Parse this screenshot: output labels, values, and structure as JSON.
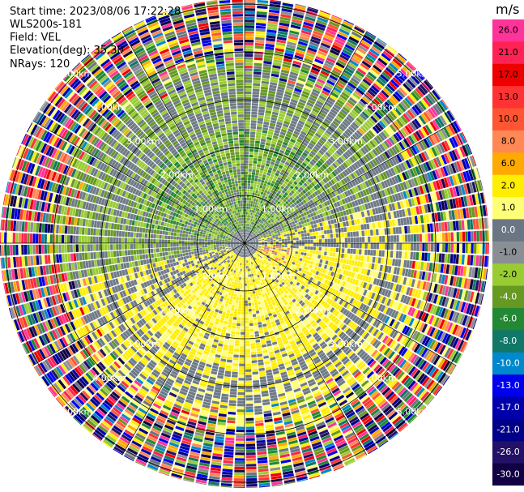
{
  "info": {
    "start_time": "Start time: 2023/08/06 17:22:28",
    "instrument": "WLS200s-181",
    "field": "Field: VEL",
    "elevation": "Elevation(deg): 35.30",
    "nrays": "NRays: 120"
  },
  "chart_data": {
    "type": "heatmap",
    "subtype": "polar-ppi",
    "field": "VEL",
    "elevation_deg": 35.3,
    "nrays": 120,
    "range_rings_km": [
      1.0,
      2.0,
      3.0,
      4.0,
      5.0
    ],
    "range_ring_labels": [
      "1.00km",
      "2.00km",
      "3.00km",
      "4.00km",
      "5.00km"
    ],
    "colorbar": {
      "unit": "m/s",
      "ticks": [
        "26.0",
        "21.0",
        "17.0",
        "13.0",
        "10.0",
        "8.0",
        "6.0",
        "2.0",
        "1.0",
        "0.0",
        "-1.0",
        "-2.0",
        "-4.0",
        "-6.0",
        "-8.0",
        "-10.0",
        "-13.0",
        "-17.0",
        "-21.0",
        "-26.0",
        "-30.0"
      ],
      "colors": [
        "#ff3399",
        "#ff2255",
        "#ee0000",
        "#ff3333",
        "#ff5533",
        "#ff8855",
        "#ffaa00",
        "#ffee00",
        "#fffe77",
        "#6b7684",
        "#8a8f96",
        "#99cc33",
        "#669922",
        "#228833",
        "#117766",
        "#0088cc",
        "#0000ee",
        "#0000aa",
        "#000088",
        "#221166",
        "#110044"
      ]
    }
  }
}
